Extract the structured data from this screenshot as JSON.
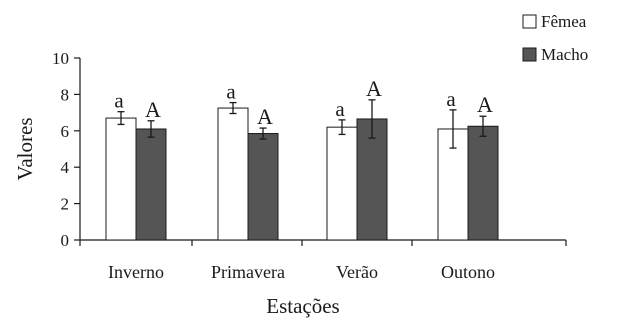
{
  "chart_data": {
    "type": "bar",
    "xlabel": "Estações",
    "ylabel": "Valores",
    "ylim": [
      0,
      10
    ],
    "yticks": [
      0,
      2,
      4,
      6,
      8,
      10
    ],
    "grid": false,
    "legend_position": "top-right",
    "categories": [
      "Inverno",
      "Primavera",
      "Verão",
      "Outono"
    ],
    "series": [
      {
        "name": "Fêmea",
        "color": "#ffffff",
        "values": [
          6.7,
          7.25,
          6.2,
          6.1
        ],
        "error": [
          0.35,
          0.3,
          0.4,
          1.05
        ],
        "labels": [
          "a",
          "a",
          "a",
          "a"
        ]
      },
      {
        "name": "Macho",
        "color": "#555555",
        "values": [
          6.1,
          5.85,
          6.65,
          6.25
        ],
        "error": [
          0.45,
          0.3,
          1.05,
          0.55
        ],
        "labels": [
          "A",
          "A",
          "A",
          "A"
        ]
      }
    ]
  }
}
